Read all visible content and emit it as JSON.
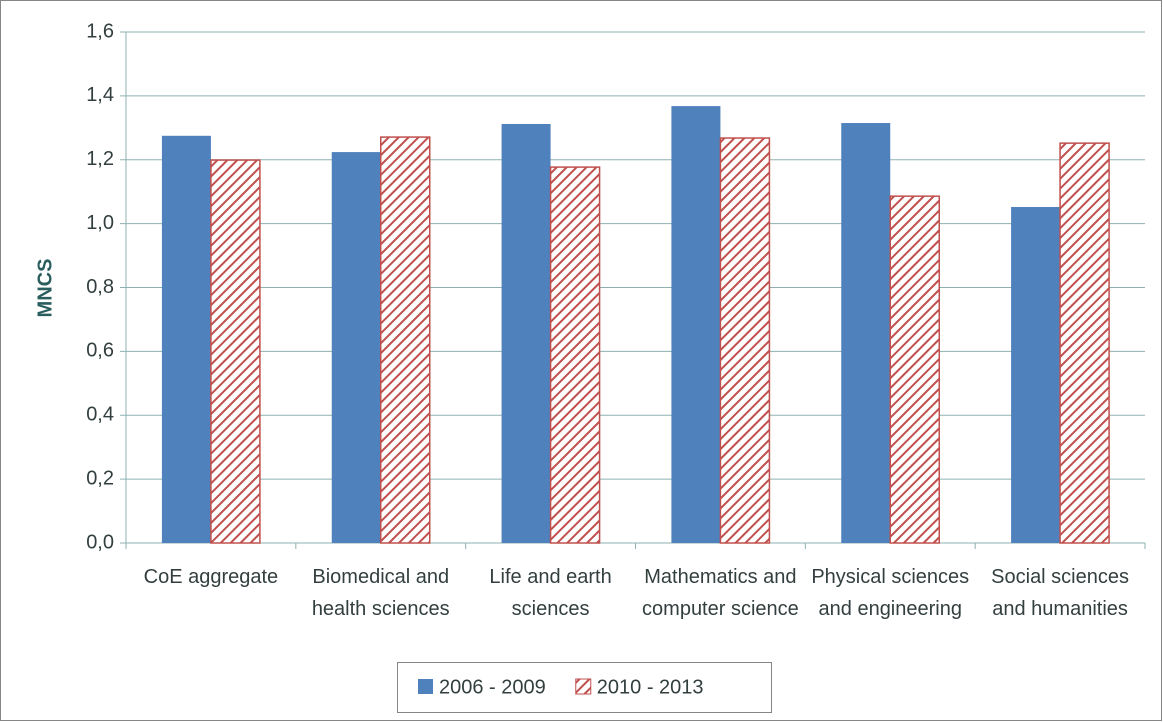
{
  "chart_data": {
    "type": "bar",
    "y_label": "MNCS",
    "categories": [
      "CoE aggregate",
      "Biomedical and health sciences",
      "Life and earth sciences",
      "Mathematics and computer science",
      "Physical sciences and engineering",
      "Social sciences and humanities"
    ],
    "series": [
      {
        "name": "2006 - 2009",
        "color": "#4f81bd",
        "values": [
          1.275,
          1.224,
          1.312,
          1.368,
          1.315,
          1.052
        ]
      },
      {
        "name": "2010 - 2013",
        "color": "#c0504d",
        "hatch": true,
        "values": [
          1.199,
          1.271,
          1.177,
          1.268,
          1.086,
          1.252
        ]
      }
    ],
    "ylim": [
      0,
      1.6
    ],
    "yticks": [
      {
        "value": 0,
        "label": "0,0"
      },
      {
        "value": 0.2,
        "label": "0,2"
      },
      {
        "value": 0.4,
        "label": "0,4"
      },
      {
        "value": 0.6,
        "label": "0,6"
      },
      {
        "value": 0.8,
        "label": "0,8"
      },
      {
        "value": 1.0,
        "label": "1,0"
      },
      {
        "value": 1.2,
        "label": "1,2"
      },
      {
        "value": 1.4,
        "label": "1,4"
      },
      {
        "value": 1.6,
        "label": "1,6"
      }
    ],
    "grid": true,
    "legend": "bottom"
  }
}
